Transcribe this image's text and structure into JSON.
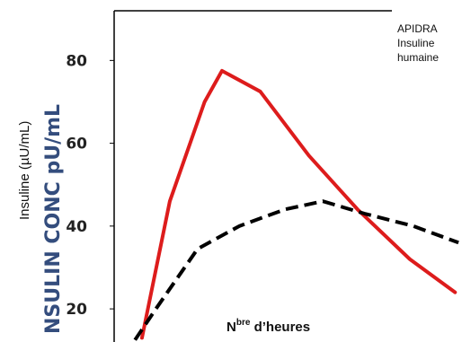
{
  "chart_data": {
    "type": "line",
    "ylabel": "Insuline (µU/mL)",
    "xlabel_main": "N",
    "xlabel_sup": "bre",
    "xlabel_rest": " d’heures",
    "y_ticks": [
      "80",
      "60",
      "40",
      "20"
    ],
    "ylim": [
      12,
      92
    ],
    "xlim": [
      0,
      10
    ],
    "grid": false,
    "legend": [
      "APIDRA",
      "Insuline",
      "humaine"
    ],
    "legend_position": "top-right",
    "ghost_label": "NSULIN CONC pU/mL",
    "series": [
      {
        "color": "#dd1c1c",
        "style": "solid",
        "x": [
          0.8,
          1.6,
          2.6,
          3.1,
          4.2,
          5.6,
          7.0,
          8.5,
          9.8
        ],
        "y": [
          13,
          46,
          70,
          77.5,
          72.5,
          57,
          44,
          32,
          24
        ]
      },
      {
        "color": "#000000",
        "style": "dashed",
        "x": [
          0.6,
          1.2,
          2.4,
          3.6,
          4.9,
          6.0,
          7.2,
          8.6,
          9.9
        ],
        "y": [
          12.5,
          20,
          34.5,
          40,
          44,
          46,
          43,
          40,
          36
        ]
      }
    ]
  }
}
